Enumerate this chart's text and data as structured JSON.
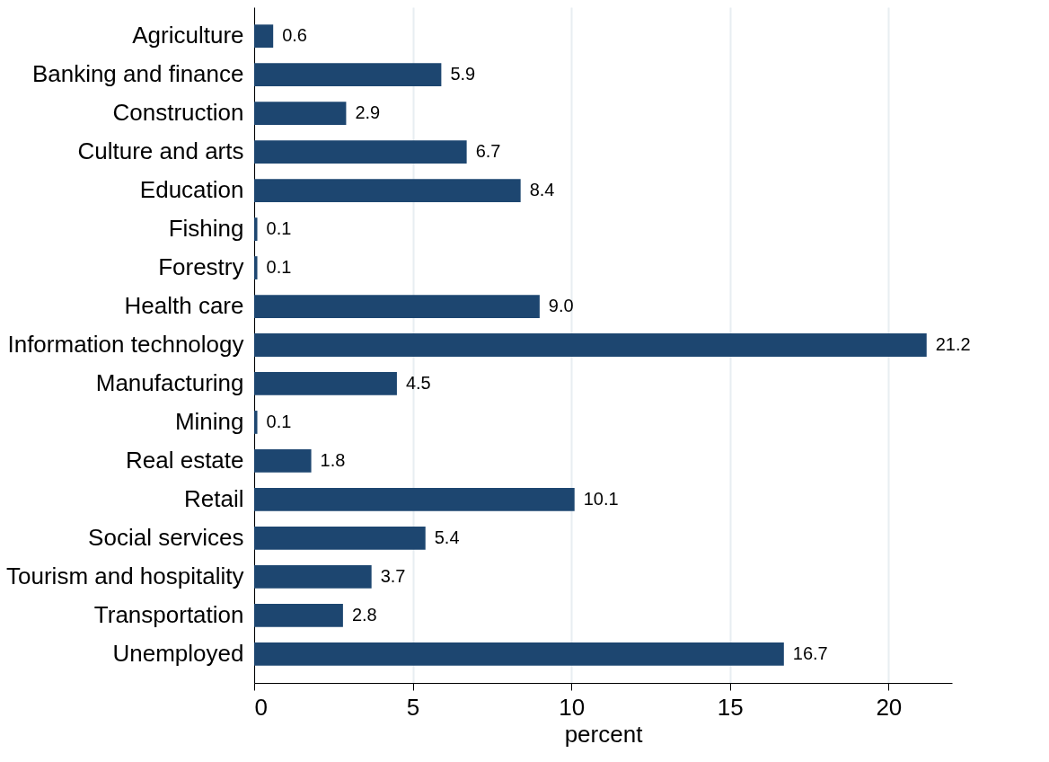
{
  "chart_data": {
    "type": "bar",
    "orientation": "horizontal",
    "xlabel": "percent",
    "categories": [
      "Agriculture",
      "Banking and finance",
      "Construction",
      "Culture and arts",
      "Education",
      "Fishing",
      "Forestry",
      "Health care",
      "Information technology",
      "Manufacturing",
      "Mining",
      "Real estate",
      "Retail",
      "Social services",
      "Tourism and hospitality",
      "Transportation",
      "Unemployed"
    ],
    "values": [
      0.6,
      5.9,
      2.9,
      6.7,
      8.4,
      0.1,
      0.1,
      9.0,
      21.2,
      4.5,
      0.1,
      1.8,
      10.1,
      5.4,
      3.7,
      2.8,
      16.7
    ],
    "value_labels": [
      "0.6",
      "5.9",
      "2.9",
      "6.7",
      "8.4",
      "0.1",
      "0.1",
      "9.0",
      "21.2",
      "4.5",
      "0.1",
      "1.8",
      "10.1",
      "5.4",
      "3.7",
      "2.8",
      "16.7"
    ],
    "color": "#1d4670",
    "xlim": [
      0,
      22
    ],
    "xticks": [
      0,
      5,
      10,
      15,
      20
    ],
    "grid": "x"
  }
}
